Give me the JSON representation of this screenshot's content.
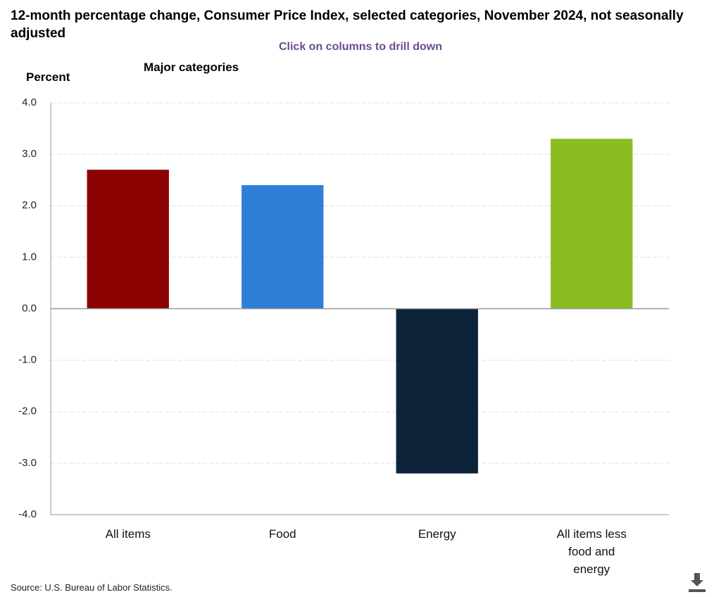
{
  "chart_data": {
    "type": "bar",
    "title": "12-month percentage change, Consumer Price Index, selected categories, November 2024, not seasonally adjusted",
    "subtitle": "Click on columns to drill down",
    "y_label": "Percent",
    "group_label": "Major categories",
    "source": "Source: U.S. Bureau of Labor Statistics.",
    "categories": [
      "All items",
      "Food",
      "Energy",
      "All items less food and energy"
    ],
    "values": [
      2.7,
      2.4,
      -3.2,
      3.3
    ],
    "colors": [
      "#8b0000",
      "#2f7ed8",
      "#0d233a",
      "#8bbc21"
    ],
    "ylim": [
      -4,
      4
    ],
    "yticks": [
      {
        "value": -4,
        "label": "-4.0"
      },
      {
        "value": -3,
        "label": "-3.0"
      },
      {
        "value": -2,
        "label": "-2.0"
      },
      {
        "value": -1,
        "label": "-1.0"
      },
      {
        "value": 0,
        "label": "0.0"
      },
      {
        "value": 1,
        "label": "1.0"
      },
      {
        "value": 2,
        "label": "2.0"
      },
      {
        "value": 3,
        "label": "3.0"
      },
      {
        "value": 4,
        "label": "4.0"
      }
    ],
    "grid": true
  }
}
